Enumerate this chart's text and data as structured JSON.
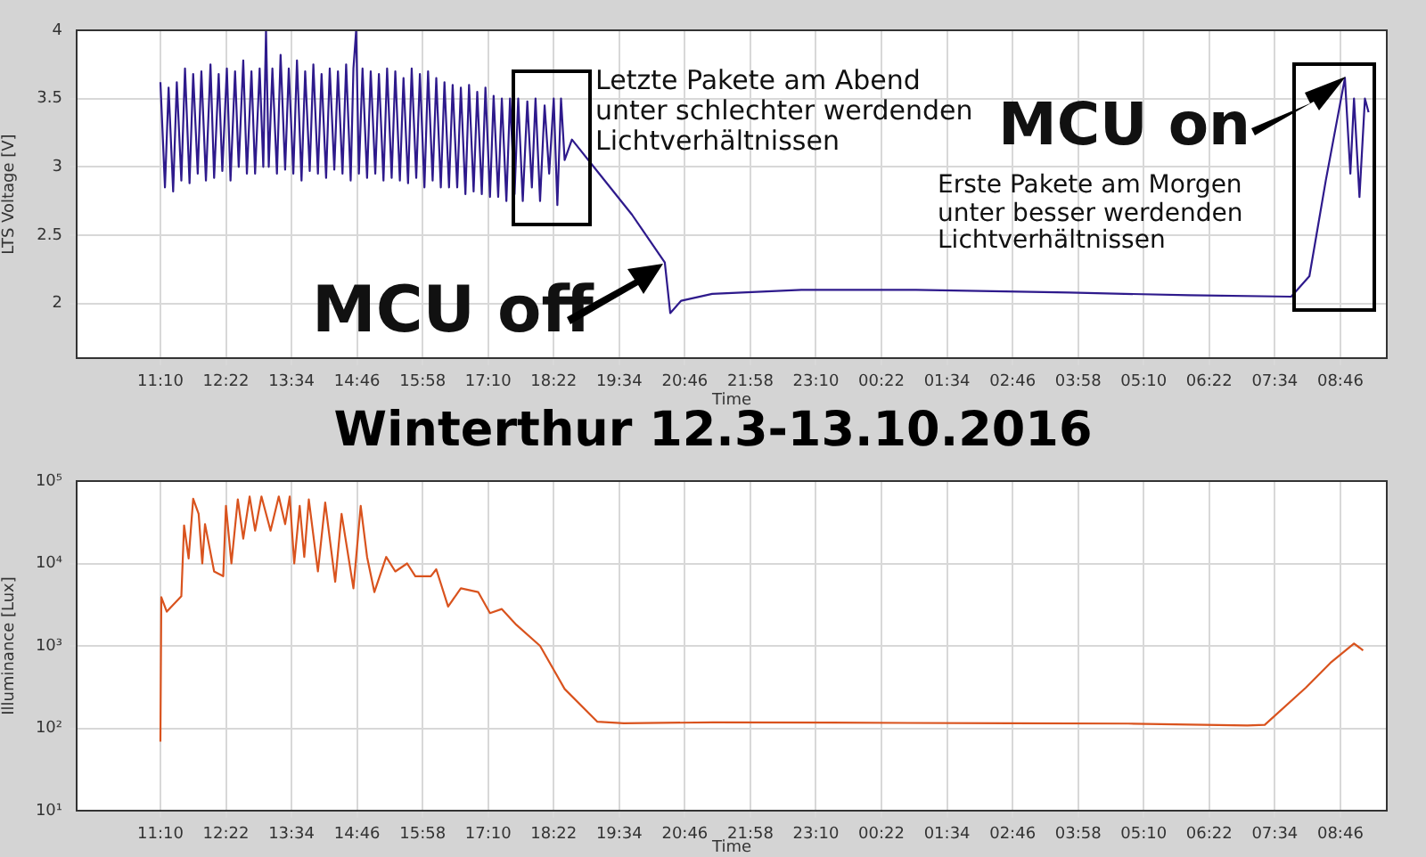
{
  "chart_data": [
    {
      "type": "line",
      "xlabel": "Time",
      "ylabel": "LTS Voltage [V]",
      "grid": true,
      "legend": false,
      "xlim": [
        "2016-10-12T09:38",
        "2016-10-13T09:37"
      ],
      "ylim": [
        1.6,
        4
      ],
      "yticks": [
        2,
        2.5,
        3,
        3.5,
        4
      ],
      "xticks": [
        {
          "value": "2016-10-12T11:10",
          "label": "11:10"
        },
        {
          "value": "2016-10-12T12:22",
          "label": "12:22"
        },
        {
          "value": "2016-10-12T13:34",
          "label": "13:34"
        },
        {
          "value": "2016-10-12T14:46",
          "label": "14:46"
        },
        {
          "value": "2016-10-12T15:58",
          "label": "15:58"
        },
        {
          "value": "2016-10-12T17:10",
          "label": "17:10"
        },
        {
          "value": "2016-10-12T18:22",
          "label": "18:22"
        },
        {
          "value": "2016-10-12T19:34",
          "label": "19:34"
        },
        {
          "value": "2016-10-12T20:46",
          "label": "20:46"
        },
        {
          "value": "2016-10-12T21:58",
          "label": "21:58"
        },
        {
          "value": "2016-10-12T23:10",
          "label": "23:10"
        },
        {
          "value": "2016-10-13T00:22",
          "label": "00:22"
        },
        {
          "value": "2016-10-13T01:34",
          "label": "01:34"
        },
        {
          "value": "2016-10-13T02:46",
          "label": "02:46"
        },
        {
          "value": "2016-10-13T03:58",
          "label": "03:58"
        },
        {
          "value": "2016-10-13T05:10",
          "label": "05:10"
        },
        {
          "value": "2016-10-13T06:22",
          "label": "06:22"
        },
        {
          "value": "2016-10-13T07:34",
          "label": "07:34"
        },
        {
          "value": "2016-10-13T08:46",
          "label": "08:46"
        }
      ],
      "annotations": [
        "Letzte Pakete am Abend\nunter schlechter werdenden\nLichtverhältnissen",
        "MCU off",
        "MCU on",
        "Erste Pakete am Morgen\nunter besser werdenden\nLichtverhältnissen"
      ],
      "series": [
        {
          "color": "#2e1a8c",
          "x": [
            "2016-10-12T11:10",
            "2016-10-12T11:15",
            "2016-10-12T11:19",
            "2016-10-12T11:24",
            "2016-10-12T11:28",
            "2016-10-12T11:33",
            "2016-10-12T11:37",
            "2016-10-12T11:42",
            "2016-10-12T11:46",
            "2016-10-12T11:51",
            "2016-10-12T11:55",
            "2016-10-12T12:00",
            "2016-10-12T12:05",
            "2016-10-12T12:09",
            "2016-10-12T12:14",
            "2016-10-12T12:18",
            "2016-10-12T12:23",
            "2016-10-12T12:27",
            "2016-10-12T12:32",
            "2016-10-12T12:36",
            "2016-10-12T12:41",
            "2016-10-12T12:45",
            "2016-10-12T12:50",
            "2016-10-12T12:54",
            "2016-10-12T12:59",
            "2016-10-12T13:03",
            "2016-10-12T13:06",
            "2016-10-12T13:09",
            "2016-10-12T13:13",
            "2016-10-12T13:18",
            "2016-10-12T13:22",
            "2016-10-12T13:27",
            "2016-10-12T13:31",
            "2016-10-12T13:36",
            "2016-10-12T13:40",
            "2016-10-12T13:45",
            "2016-10-12T13:49",
            "2016-10-12T13:54",
            "2016-10-12T13:58",
            "2016-10-12T14:03",
            "2016-10-12T14:07",
            "2016-10-12T14:12",
            "2016-10-12T14:16",
            "2016-10-12T14:21",
            "2016-10-12T14:25",
            "2016-10-12T14:30",
            "2016-10-12T14:34",
            "2016-10-12T14:39",
            "2016-10-12T14:42",
            "2016-10-12T14:45",
            "2016-10-12T14:48",
            "2016-10-12T14:52",
            "2016-10-12T14:57",
            "2016-10-12T15:01",
            "2016-10-12T15:06",
            "2016-10-12T15:10",
            "2016-10-12T15:15",
            "2016-10-12T15:19",
            "2016-10-12T15:24",
            "2016-10-12T15:28",
            "2016-10-12T15:33",
            "2016-10-12T15:37",
            "2016-10-12T15:42",
            "2016-10-12T15:46",
            "2016-10-12T15:51",
            "2016-10-12T15:55",
            "2016-10-12T16:00",
            "2016-10-12T16:04",
            "2016-10-12T16:09",
            "2016-10-12T16:13",
            "2016-10-12T16:18",
            "2016-10-12T16:22",
            "2016-10-12T16:27",
            "2016-10-12T16:31",
            "2016-10-12T16:36",
            "2016-10-12T16:40",
            "2016-10-12T16:45",
            "2016-10-12T16:49",
            "2016-10-12T16:54",
            "2016-10-12T16:58",
            "2016-10-12T17:03",
            "2016-10-12T17:07",
            "2016-10-12T17:12",
            "2016-10-12T17:16",
            "2016-10-12T17:21",
            "2016-10-12T17:25",
            "2016-10-12T17:30",
            "2016-10-12T17:34",
            "2016-10-12T17:39",
            "2016-10-12T17:43",
            "2016-10-12T17:48",
            "2016-10-12T17:53",
            "2016-10-12T17:58",
            "2016-10-12T18:02",
            "2016-10-12T18:07",
            "2016-10-12T18:12",
            "2016-10-12T18:17",
            "2016-10-12T18:22",
            "2016-10-12T18:26",
            "2016-10-12T18:30",
            "2016-10-12T18:34",
            "2016-10-12T18:42",
            "2016-10-12T19:12",
            "2016-10-12T19:48",
            "2016-10-12T20:24",
            "2016-10-12T20:30",
            "2016-10-12T20:42",
            "2016-10-12T21:16",
            "2016-10-12T22:54",
            "2016-10-13T01:00",
            "2016-10-13T03:48",
            "2016-10-13T06:00",
            "2016-10-13T07:52",
            "2016-10-13T08:12",
            "2016-10-13T08:30",
            "2016-10-13T08:51",
            "2016-10-13T08:57",
            "2016-10-13T09:01",
            "2016-10-13T09:07",
            "2016-10-13T09:13",
            "2016-10-13T09:17"
          ],
          "values": [
            3.62,
            2.85,
            3.58,
            2.82,
            3.62,
            2.9,
            3.72,
            2.88,
            3.68,
            2.95,
            3.7,
            2.9,
            3.75,
            2.92,
            3.68,
            2.97,
            3.72,
            2.9,
            3.7,
            3.0,
            3.78,
            2.95,
            3.7,
            2.95,
            3.72,
            3.0,
            4.0,
            3.0,
            3.72,
            2.95,
            3.82,
            2.98,
            3.72,
            2.95,
            3.78,
            2.9,
            3.7,
            2.97,
            3.75,
            2.95,
            3.68,
            2.92,
            3.72,
            2.98,
            3.7,
            2.95,
            3.75,
            2.9,
            3.72,
            4.0,
            2.95,
            3.72,
            2.92,
            3.7,
            2.95,
            3.68,
            2.9,
            3.72,
            2.92,
            3.7,
            2.9,
            3.65,
            2.88,
            3.72,
            2.92,
            3.68,
            2.85,
            3.7,
            2.9,
            3.65,
            2.85,
            3.62,
            2.85,
            3.6,
            2.85,
            3.58,
            2.8,
            3.6,
            2.82,
            3.55,
            2.8,
            3.58,
            2.78,
            3.52,
            2.78,
            3.5,
            2.75,
            3.5,
            2.8,
            3.5,
            2.75,
            3.48,
            2.85,
            3.5,
            2.75,
            3.45,
            2.95,
            3.5,
            2.72,
            3.5,
            3.05,
            3.2,
            2.95,
            2.65,
            2.3,
            1.93,
            2.02,
            2.07,
            2.1,
            2.1,
            2.08,
            2.06,
            2.05,
            2.2,
            2.9,
            3.65,
            2.95,
            3.5,
            2.78,
            3.5,
            3.4
          ]
        }
      ]
    },
    {
      "type": "line",
      "title": "Winterthur 12.3-13.10.2016",
      "xlabel": "Time",
      "ylabel": "Illuminance [Lux]",
      "grid": true,
      "legend": false,
      "log": "y",
      "xlim": [
        "2016-10-12T09:38",
        "2016-10-13T09:37"
      ],
      "ylim": [
        10,
        100000
      ],
      "yticks": [
        {
          "value": 10,
          "label": "10¹"
        },
        {
          "value": 100,
          "label": "10²"
        },
        {
          "value": 1000,
          "label": "10³"
        },
        {
          "value": 10000,
          "label": "10⁴"
        },
        {
          "value": 100000,
          "label": "10⁵"
        }
      ],
      "xticks": [
        {
          "value": "2016-10-12T11:10",
          "label": "11:10"
        },
        {
          "value": "2016-10-12T12:22",
          "label": "12:22"
        },
        {
          "value": "2016-10-12T13:34",
          "label": "13:34"
        },
        {
          "value": "2016-10-12T14:46",
          "label": "14:46"
        },
        {
          "value": "2016-10-12T15:58",
          "label": "15:58"
        },
        {
          "value": "2016-10-12T17:10",
          "label": "17:10"
        },
        {
          "value": "2016-10-12T18:22",
          "label": "18:22"
        },
        {
          "value": "2016-10-12T19:34",
          "label": "19:34"
        },
        {
          "value": "2016-10-12T20:46",
          "label": "20:46"
        },
        {
          "value": "2016-10-12T21:58",
          "label": "21:58"
        },
        {
          "value": "2016-10-12T23:10",
          "label": "23:10"
        },
        {
          "value": "2016-10-13T00:22",
          "label": "00:22"
        },
        {
          "value": "2016-10-13T01:34",
          "label": "01:34"
        },
        {
          "value": "2016-10-13T02:46",
          "label": "02:46"
        },
        {
          "value": "2016-10-13T03:58",
          "label": "03:58"
        },
        {
          "value": "2016-10-13T05:10",
          "label": "05:10"
        },
        {
          "value": "2016-10-13T06:22",
          "label": "06:22"
        },
        {
          "value": "2016-10-13T07:34",
          "label": "07:34"
        },
        {
          "value": "2016-10-13T08:46",
          "label": "08:46"
        }
      ],
      "series": [
        {
          "color": "#d9531e",
          "x": [
            "2016-10-12T11:10",
            "2016-10-12T11:11",
            "2016-10-12T11:17",
            "2016-10-12T11:33",
            "2016-10-12T11:36",
            "2016-10-12T11:41",
            "2016-10-12T11:46",
            "2016-10-12T11:52",
            "2016-10-12T11:56",
            "2016-10-12T11:59",
            "2016-10-12T12:09",
            "2016-10-12T12:19",
            "2016-10-12T12:22",
            "2016-10-12T12:28",
            "2016-10-12T12:35",
            "2016-10-12T12:41",
            "2016-10-12T12:48",
            "2016-10-12T12:54",
            "2016-10-12T13:01",
            "2016-10-12T13:11",
            "2016-10-12T13:20",
            "2016-10-12T13:27",
            "2016-10-12T13:32",
            "2016-10-12T13:37",
            "2016-10-12T13:43",
            "2016-10-12T13:48",
            "2016-10-12T13:53",
            "2016-10-12T14:03",
            "2016-10-12T14:11",
            "2016-10-12T14:22",
            "2016-10-12T14:29",
            "2016-10-12T14:42",
            "2016-10-12T14:50",
            "2016-10-12T14:57",
            "2016-10-12T15:05",
            "2016-10-12T15:18",
            "2016-10-12T15:28",
            "2016-10-12T15:41",
            "2016-10-12T15:50",
            "2016-10-12T16:07",
            "2016-10-12T16:13",
            "2016-10-12T16:26",
            "2016-10-12T16:40",
            "2016-10-12T16:59",
            "2016-10-12T17:12",
            "2016-10-12T17:25",
            "2016-10-12T17:41",
            "2016-10-12T18:07",
            "2016-10-12T18:34",
            "2016-10-12T19:10",
            "2016-10-12T19:39",
            "2016-10-12T21:17",
            "2016-10-12T23:27",
            "2016-10-13T02:43",
            "2016-10-13T04:53",
            "2016-10-13T07:04",
            "2016-10-13T07:23",
            "2016-10-13T08:08",
            "2016-10-13T08:35",
            "2016-10-13T09:01",
            "2016-10-13T09:11"
          ],
          "values": [
            69,
            3900,
            2600,
            4000,
            29000,
            11500,
            61000,
            40000,
            10000,
            30000,
            8000,
            7000,
            50000,
            10000,
            60000,
            20000,
            65000,
            25000,
            65000,
            25000,
            65000,
            30000,
            65000,
            10000,
            50000,
            12000,
            60000,
            8000,
            55000,
            6000,
            40000,
            5000,
            50000,
            12000,
            4500,
            12000,
            8000,
            10000,
            7000,
            7000,
            8500,
            3000,
            5000,
            4500,
            2500,
            2800,
            1800,
            1000,
            300,
            120,
            115,
            118,
            117,
            115,
            114,
            108,
            110,
            310,
            620,
            1070,
            880
          ]
        }
      ]
    }
  ]
}
